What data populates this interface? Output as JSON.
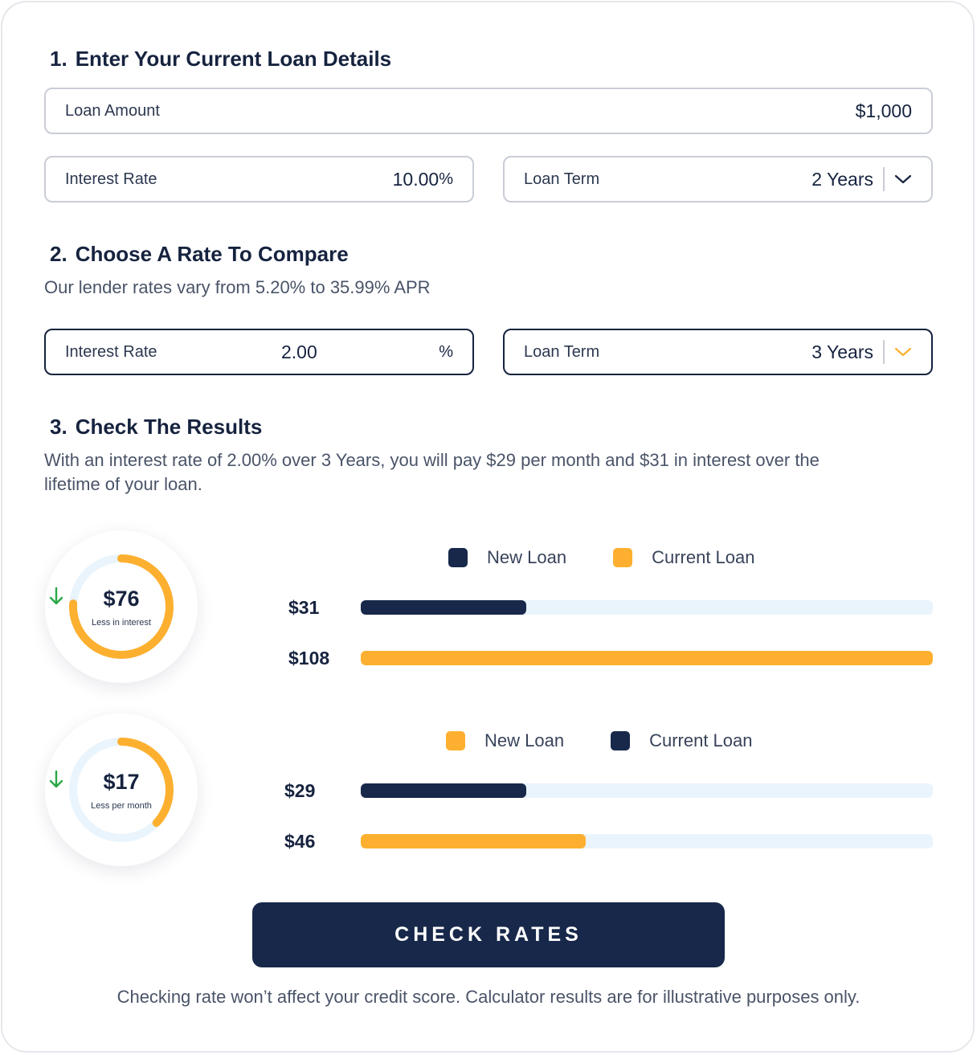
{
  "section1": {
    "number": "1.",
    "title": "Enter Your Current Loan Details",
    "loan_amount_label": "Loan Amount",
    "loan_amount_value": "$1,000",
    "interest_label": "Interest Rate",
    "interest_value": "10.00",
    "interest_unit": "%",
    "term_label": "Loan Term",
    "term_value": "2 Years"
  },
  "section2": {
    "number": "2.",
    "title": "Choose A Rate To Compare",
    "subtitle": "Our lender rates vary from 5.20% to 35.99% APR",
    "interest_label": "Interest Rate",
    "interest_value": "2.00",
    "interest_unit": "%",
    "term_label": "Loan Term",
    "term_value": "3 Years"
  },
  "section3": {
    "number": "3.",
    "title": "Check The Results",
    "summary_line1": "With an interest rate of 2.00% over 3 Years, you will pay $29 per month and $31 in interest over the",
    "summary_line2": "lifetime of your loan."
  },
  "interest_chart": {
    "gauge_value": "$76",
    "gauge_caption": "Less in interest",
    "gauge_fraction": 0.76,
    "legend": [
      {
        "label": "New Loan",
        "color": "#17284a"
      },
      {
        "label": "Current Loan",
        "color": "#fdb02f"
      }
    ],
    "bars": [
      {
        "label": "$31",
        "value": 31,
        "color": "#17284a"
      },
      {
        "label": "$108",
        "value": 108,
        "color": "#fdb02f"
      }
    ],
    "max": 108
  },
  "monthly_chart": {
    "gauge_value": "$17",
    "gauge_caption": "Less per month",
    "gauge_fraction": 0.37,
    "legend": [
      {
        "label": "New Loan",
        "color": "#fdb02f"
      },
      {
        "label": "Current Loan",
        "color": "#17284a"
      }
    ],
    "bars": [
      {
        "label": "$29",
        "value": 29,
        "color": "#17284a"
      },
      {
        "label": "$46",
        "value": 46,
        "color": "#fdb02f"
      }
    ],
    "max": 108
  },
  "colors": {
    "navy": "#17284a",
    "amber": "#fdb02f",
    "track": "#e9f4fc",
    "green": "#2aa845"
  },
  "cta": {
    "label": "CHECK RATES"
  },
  "footer": "Checking rate won’t affect your credit score. Calculator results are for illustrative purposes only."
}
